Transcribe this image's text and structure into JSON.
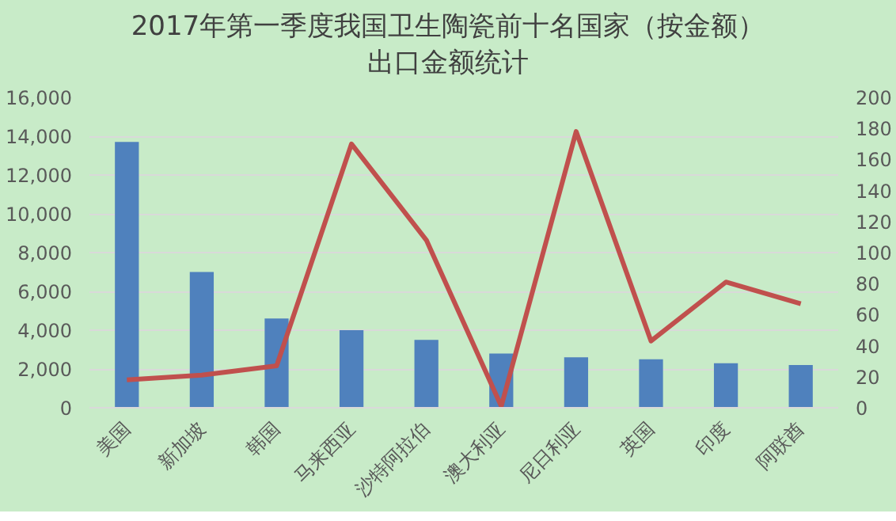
{
  "chart_data": {
    "type": "bar",
    "title": "2017年第一季度我国卫生陶瓷前十名国家（按金额）出口金额统计",
    "categories": [
      "美国",
      "新加坡",
      "韩国",
      "马来西亚",
      "沙特阿拉伯",
      "澳大利亚",
      "尼日利亚",
      "英国",
      "印度",
      "阿联酋"
    ],
    "series": [
      {
        "color": "#4f81bd",
        "values": [
          13700,
          7000,
          4600,
          4000,
          3500,
          2800,
          2600,
          2500,
          2300,
          2200
        ]
      },
      {
        "type": "line",
        "axis": "y2",
        "color": "#c0504d",
        "values": [
          18,
          21,
          27,
          170,
          108,
          1,
          178,
          43,
          81,
          67
        ]
      }
    ],
    "ylim": [
      0,
      16000
    ],
    "yticks": [
      {
        "value": 0,
        "label": "0"
      },
      {
        "value": 2000,
        "label": "2,000"
      },
      {
        "value": 4000,
        "label": "4,000"
      },
      {
        "value": 6000,
        "label": "6,000"
      },
      {
        "value": 8000,
        "label": "8,000"
      },
      {
        "value": 10000,
        "label": "10,000"
      },
      {
        "value": 12000,
        "label": "12,000"
      },
      {
        "value": 14000,
        "label": "14,000"
      },
      {
        "value": 16000,
        "label": "16,000"
      }
    ],
    "y2lim": [
      0,
      200
    ],
    "y2ticks": [
      0,
      20,
      40,
      60,
      80,
      100,
      120,
      140,
      160,
      180,
      200
    ],
    "grid": "y"
  }
}
